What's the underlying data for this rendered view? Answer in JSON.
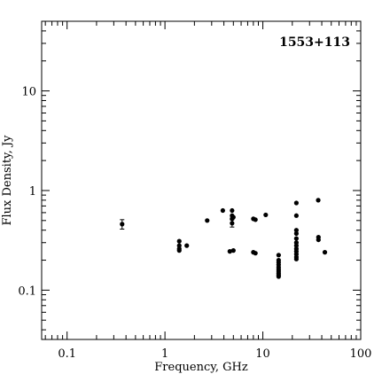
{
  "chart_data": {
    "type": "scatter",
    "title": "1553+113",
    "xlabel": "Frequency, GHz",
    "ylabel": "Flux Density, Jy",
    "xscale": "log",
    "yscale": "log",
    "xlim": [
      0.055,
      100
    ],
    "ylim": [
      0.032,
      50
    ],
    "xticks": [
      {
        "value": 0.1,
        "label": "0.1"
      },
      {
        "value": 1,
        "label": "1"
      },
      {
        "value": 10,
        "label": "10"
      },
      {
        "value": 100,
        "label": "100"
      }
    ],
    "yticks": [
      {
        "value": 0.1,
        "label": "0.1"
      },
      {
        "value": 1,
        "label": "1"
      },
      {
        "value": 10,
        "label": "10"
      }
    ],
    "title_position": "top-right",
    "grid": false,
    "series": [
      {
        "points": [
          {
            "x": 0.365,
            "y": 0.46,
            "err": 0.05
          },
          {
            "x": 1.4,
            "y": 0.31
          },
          {
            "x": 1.4,
            "y": 0.28
          },
          {
            "x": 1.4,
            "y": 0.26
          },
          {
            "x": 1.4,
            "y": 0.25
          },
          {
            "x": 1.67,
            "y": 0.28
          },
          {
            "x": 2.7,
            "y": 0.5
          },
          {
            "x": 3.9,
            "y": 0.63
          },
          {
            "x": 4.6,
            "y": 0.245
          },
          {
            "x": 4.85,
            "y": 0.63
          },
          {
            "x": 4.85,
            "y": 0.56
          },
          {
            "x": 4.85,
            "y": 0.52
          },
          {
            "x": 4.85,
            "y": 0.47,
            "err": 0.04
          },
          {
            "x": 5.0,
            "y": 0.54
          },
          {
            "x": 5.0,
            "y": 0.25
          },
          {
            "x": 8.0,
            "y": 0.52
          },
          {
            "x": 8.0,
            "y": 0.24
          },
          {
            "x": 8.4,
            "y": 0.51
          },
          {
            "x": 8.4,
            "y": 0.235
          },
          {
            "x": 10.7,
            "y": 0.57
          },
          {
            "x": 14.5,
            "y": 0.225
          },
          {
            "x": 14.5,
            "y": 0.2
          },
          {
            "x": 14.5,
            "y": 0.19
          },
          {
            "x": 14.5,
            "y": 0.18
          },
          {
            "x": 14.5,
            "y": 0.17
          },
          {
            "x": 14.5,
            "y": 0.162
          },
          {
            "x": 14.5,
            "y": 0.155
          },
          {
            "x": 14.5,
            "y": 0.148
          },
          {
            "x": 14.5,
            "y": 0.142
          },
          {
            "x": 14.5,
            "y": 0.137
          },
          {
            "x": 22,
            "y": 0.75
          },
          {
            "x": 22,
            "y": 0.56
          },
          {
            "x": 22,
            "y": 0.4
          },
          {
            "x": 22,
            "y": 0.37
          },
          {
            "x": 22,
            "y": 0.33
          },
          {
            "x": 22,
            "y": 0.3
          },
          {
            "x": 22,
            "y": 0.28
          },
          {
            "x": 22,
            "y": 0.26
          },
          {
            "x": 22,
            "y": 0.245
          },
          {
            "x": 22,
            "y": 0.23
          },
          {
            "x": 22,
            "y": 0.215
          },
          {
            "x": 22,
            "y": 0.205
          },
          {
            "x": 36.8,
            "y": 0.8
          },
          {
            "x": 37,
            "y": 0.34
          },
          {
            "x": 37,
            "y": 0.32
          },
          {
            "x": 43,
            "y": 0.24
          }
        ]
      }
    ]
  }
}
